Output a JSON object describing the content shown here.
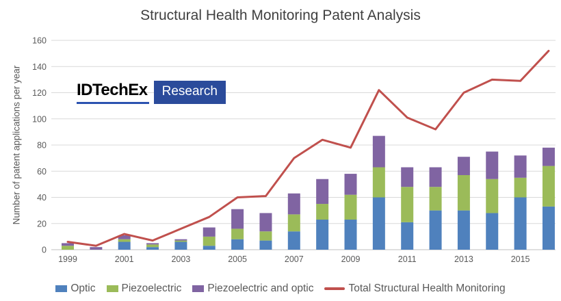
{
  "title": "Structural Health Monitoring Patent Analysis",
  "y_axis_label": "Number of patent applications per year",
  "logo": {
    "brand": "IDTechEx",
    "suffix": "Research"
  },
  "colors": {
    "optic": "#4F81BD",
    "piezoelectric": "#9BBB59",
    "piezo_and_optic": "#8064A2",
    "total_line": "#C0504D",
    "gridline": "#D9D9D9",
    "axis_line": "#BFBFBF",
    "tick_text": "#595959",
    "title_text": "#404040",
    "logo_blue": "#2B4B9B"
  },
  "chart_data": {
    "type": "bar",
    "subtype": "stacked-bars-with-line-overlay",
    "title": "Structural Health Monitoring Patent Analysis",
    "xlabel": "",
    "ylabel": "Number of patent applications per year",
    "ylim": [
      0,
      160
    ],
    "ytick_step": 20,
    "grid": true,
    "legend_position": "bottom",
    "categories": [
      "1999",
      "2000",
      "2001",
      "2002",
      "2003",
      "2004",
      "2005",
      "2006",
      "2007",
      "2008",
      "2009",
      "2010",
      "2011",
      "2012",
      "2013",
      "2014",
      "2015",
      "2016"
    ],
    "xticks_shown": [
      "1999",
      "2001",
      "2003",
      "2005",
      "2007",
      "2009",
      "2011",
      "2013",
      "2015"
    ],
    "series": [
      {
        "name": "Optic",
        "render": "bar",
        "color": "#4F81BD",
        "values": [
          0,
          0,
          6,
          2,
          6,
          3,
          8,
          7,
          14,
          23,
          23,
          40,
          21,
          30,
          30,
          28,
          40,
          33
        ]
      },
      {
        "name": "Piezoelectric",
        "render": "bar",
        "color": "#9BBB59",
        "values": [
          3,
          0,
          2,
          2,
          1,
          7,
          8,
          7,
          13,
          12,
          19,
          23,
          27,
          18,
          27,
          26,
          15,
          31
        ]
      },
      {
        "name": "Piezoelectric and optic",
        "render": "bar",
        "color": "#8064A2",
        "values": [
          2,
          2,
          3,
          1,
          1,
          7,
          15,
          14,
          16,
          19,
          16,
          24,
          15,
          15,
          14,
          21,
          17,
          14
        ]
      },
      {
        "name": "Total Structural Health Monitoring",
        "render": "line",
        "color": "#C0504D",
        "values": [
          6,
          3,
          12,
          7,
          16,
          25,
          40,
          41,
          70,
          84,
          78,
          122,
          101,
          92,
          120,
          130,
          129,
          152
        ]
      }
    ]
  }
}
